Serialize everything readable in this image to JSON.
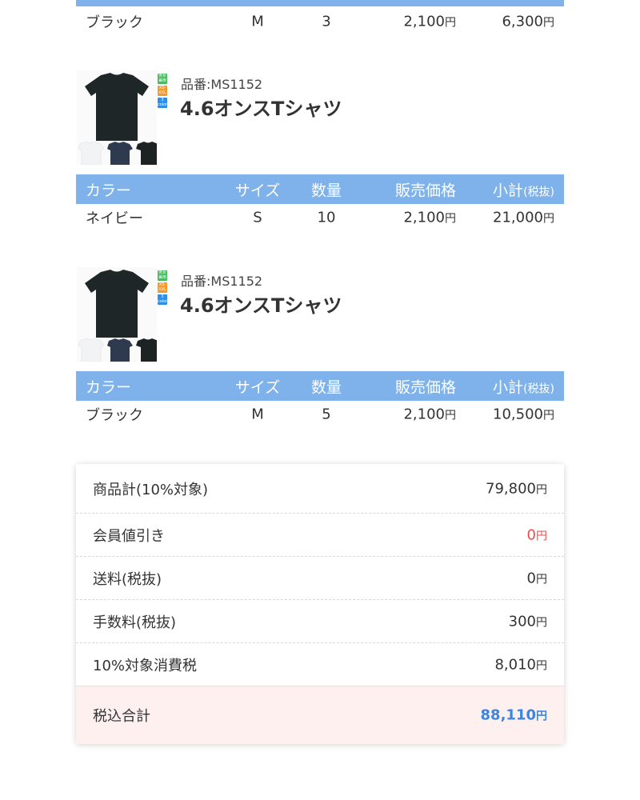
{
  "colors": {
    "header_bg": "#7fb2ea",
    "discount": "#e84c4c",
    "total": "#3a86e0",
    "total_bg": "#fff0f0"
  },
  "table_headers": {
    "color": "カラー",
    "size": "サイズ",
    "qty": "数量",
    "price": "販売価格",
    "subtotal": "小計",
    "subtotal_note": "(税抜)"
  },
  "yen": "円",
  "top_row": {
    "color": "ブラック",
    "size": "M",
    "qty": "3",
    "price": "2,100",
    "subtotal": "6,300"
  },
  "items": [
    {
      "code": "品番:MS1152",
      "name": "4.6オンスTシャツ",
      "badges": [
        "男女兼用",
        "XS-XXL",
        "3 color"
      ],
      "row": {
        "color": "ネイビー",
        "size": "S",
        "qty": "10",
        "price": "2,100",
        "subtotal": "21,000"
      }
    },
    {
      "code": "品番:MS1152",
      "name": "4.6オンスTシャツ",
      "badges": [
        "男女兼用",
        "XS-XXL",
        "3 color"
      ],
      "row": {
        "color": "ブラック",
        "size": "M",
        "qty": "5",
        "price": "2,100",
        "subtotal": "10,500"
      }
    }
  ],
  "summary": [
    {
      "label": "商品計(10%対象)",
      "value": "79,800"
    },
    {
      "label": "会員値引き",
      "value": "0"
    },
    {
      "label": "送料(税抜)",
      "value": "0"
    },
    {
      "label": "手数料(税抜)",
      "value": "300"
    },
    {
      "label": "10%対象消費税",
      "value": "8,010"
    }
  ],
  "total": {
    "label": "税込合計",
    "value": "88,110"
  }
}
